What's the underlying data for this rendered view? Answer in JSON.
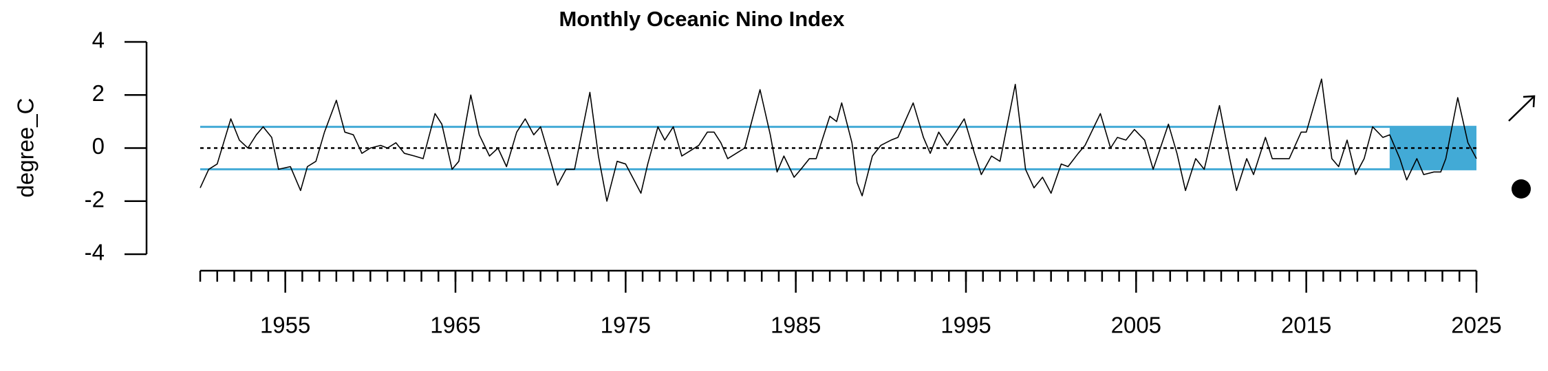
{
  "chart_data": {
    "type": "line",
    "title": "Monthly Oceanic Nino Index",
    "ylabel": "degree_C",
    "color": "#000000",
    "x": [
      1950.0,
      1950.5,
      1951.0,
      1951.8,
      1952.3,
      1952.8,
      1953.3,
      1953.7,
      1954.2,
      1954.6,
      1955.3,
      1955.9,
      1956.3,
      1956.8,
      1957.3,
      1958.0,
      1958.5,
      1959.0,
      1959.5,
      1960.0,
      1960.6,
      1961.0,
      1961.5,
      1962.0,
      1962.6,
      1963.1,
      1963.8,
      1964.2,
      1964.8,
      1965.2,
      1965.9,
      1966.4,
      1967.0,
      1967.5,
      1968.0,
      1968.6,
      1969.1,
      1969.6,
      1970.0,
      1970.6,
      1971.0,
      1971.5,
      1972.0,
      1972.9,
      1973.4,
      1973.9,
      1974.5,
      1975.0,
      1975.9,
      1976.3,
      1976.9,
      1977.3,
      1977.8,
      1978.3,
      1978.8,
      1979.3,
      1979.8,
      1980.2,
      1980.6,
      1981.0,
      1981.5,
      1982.0,
      1982.9,
      1983.5,
      1983.9,
      1984.3,
      1984.9,
      1985.3,
      1985.8,
      1986.2,
      1987.0,
      1987.4,
      1987.7,
      1988.3,
      1988.6,
      1988.9,
      1989.5,
      1990.0,
      1990.6,
      1991.0,
      1991.9,
      1992.5,
      1992.9,
      1993.4,
      1993.9,
      1994.9,
      1995.5,
      1995.9,
      1996.5,
      1997.0,
      1997.9,
      1998.5,
      1999.0,
      1999.5,
      2000.0,
      2000.6,
      2001.0,
      2001.6,
      2002.0,
      2002.9,
      2003.5,
      2003.9,
      2004.4,
      2004.9,
      2005.5,
      2006.0,
      2006.9,
      2007.4,
      2007.9,
      2008.5,
      2009.0,
      2009.9,
      2010.5,
      2010.9,
      2011.5,
      2011.9,
      2012.6,
      2013.0,
      2013.5,
      2014.0,
      2014.7,
      2015.0,
      2015.9,
      2016.5,
      2016.9,
      2017.4,
      2017.9,
      2018.4,
      2018.9,
      2019.5,
      2019.9,
      2020.5,
      2020.9,
      2021.5,
      2021.9,
      2022.5,
      2022.9,
      2023.2,
      2023.9,
      2024.5,
      2025.0
    ],
    "values": [
      -1.5,
      -0.8,
      -0.6,
      1.1,
      0.3,
      0.0,
      0.5,
      0.8,
      0.4,
      -0.8,
      -0.7,
      -1.6,
      -0.7,
      -0.5,
      0.6,
      1.8,
      0.6,
      0.5,
      -0.2,
      0.0,
      0.1,
      0.0,
      0.2,
      -0.2,
      -0.3,
      -0.4,
      1.3,
      0.9,
      -0.8,
      -0.5,
      2.0,
      0.5,
      -0.3,
      0.0,
      -0.7,
      0.6,
      1.1,
      0.5,
      0.8,
      -0.5,
      -1.4,
      -0.8,
      -0.8,
      2.1,
      -0.3,
      -2.0,
      -0.5,
      -0.6,
      -1.7,
      -0.6,
      0.8,
      0.3,
      0.8,
      -0.3,
      -0.1,
      0.1,
      0.6,
      0.6,
      0.2,
      -0.4,
      -0.2,
      0.0,
      2.2,
      0.5,
      -0.9,
      -0.3,
      -1.1,
      -0.8,
      -0.4,
      -0.4,
      1.2,
      1.0,
      1.7,
      0.2,
      -1.3,
      -1.8,
      -0.3,
      0.1,
      0.3,
      0.4,
      1.7,
      0.4,
      -0.2,
      0.6,
      0.1,
      1.1,
      -0.2,
      -1.0,
      -0.3,
      -0.5,
      2.4,
      -0.8,
      -1.5,
      -1.1,
      -1.7,
      -0.6,
      -0.7,
      -0.2,
      0.1,
      1.3,
      0.0,
      0.4,
      0.3,
      0.7,
      0.3,
      -0.8,
      0.9,
      -0.2,
      -1.6,
      -0.4,
      -0.8,
      1.6,
      -0.4,
      -1.6,
      -0.4,
      -1.0,
      0.4,
      -0.4,
      -0.4,
      -0.4,
      0.6,
      0.6,
      2.6,
      -0.4,
      -0.7,
      0.3,
      -1.0,
      -0.4,
      0.8,
      0.4,
      0.5,
      -0.4,
      -1.2,
      -0.4,
      -1.0,
      -0.9,
      -0.9,
      -0.4,
      1.9,
      0.2,
      -0.4
    ],
    "xlim": [
      1950,
      2025
    ],
    "xticks": [
      1955,
      1965,
      1975,
      1985,
      1995,
      2005,
      2015,
      2025
    ],
    "minor_xticks": [
      1950,
      1951,
      1952,
      1953,
      1954,
      1955,
      1956,
      1957,
      1958,
      1959,
      1960,
      1961,
      1962,
      1963,
      1964,
      1965,
      1966,
      1967,
      1968,
      1969,
      1970,
      1971,
      1972,
      1973,
      1974,
      1975,
      1976,
      1977,
      1978,
      1979,
      1980,
      1981,
      1982,
      1983,
      1984,
      1985,
      1986,
      1987,
      1988,
      1989,
      1990,
      1991,
      1992,
      1993,
      1994,
      1995,
      1996,
      1997,
      1998,
      1999,
      2000,
      2001,
      2002,
      2003,
      2004,
      2005,
      2006,
      2007,
      2008,
      2009,
      2010,
      2011,
      2012,
      2013,
      2014,
      2015,
      2016,
      2017,
      2018,
      2019,
      2020,
      2021,
      2022,
      2023,
      2024,
      2025
    ],
    "ylim": [
      -4,
      4
    ],
    "yticks": [
      -4,
      -2,
      0,
      2,
      4
    ],
    "thresholds": [
      -0.8,
      0.8
    ],
    "threshold_color": "#42aad6",
    "zero_line": 0,
    "highlight": {
      "x": [
        2019.9,
        2025
      ],
      "y": [
        -0.8,
        0.8
      ],
      "color": "#42aad6"
    }
  }
}
